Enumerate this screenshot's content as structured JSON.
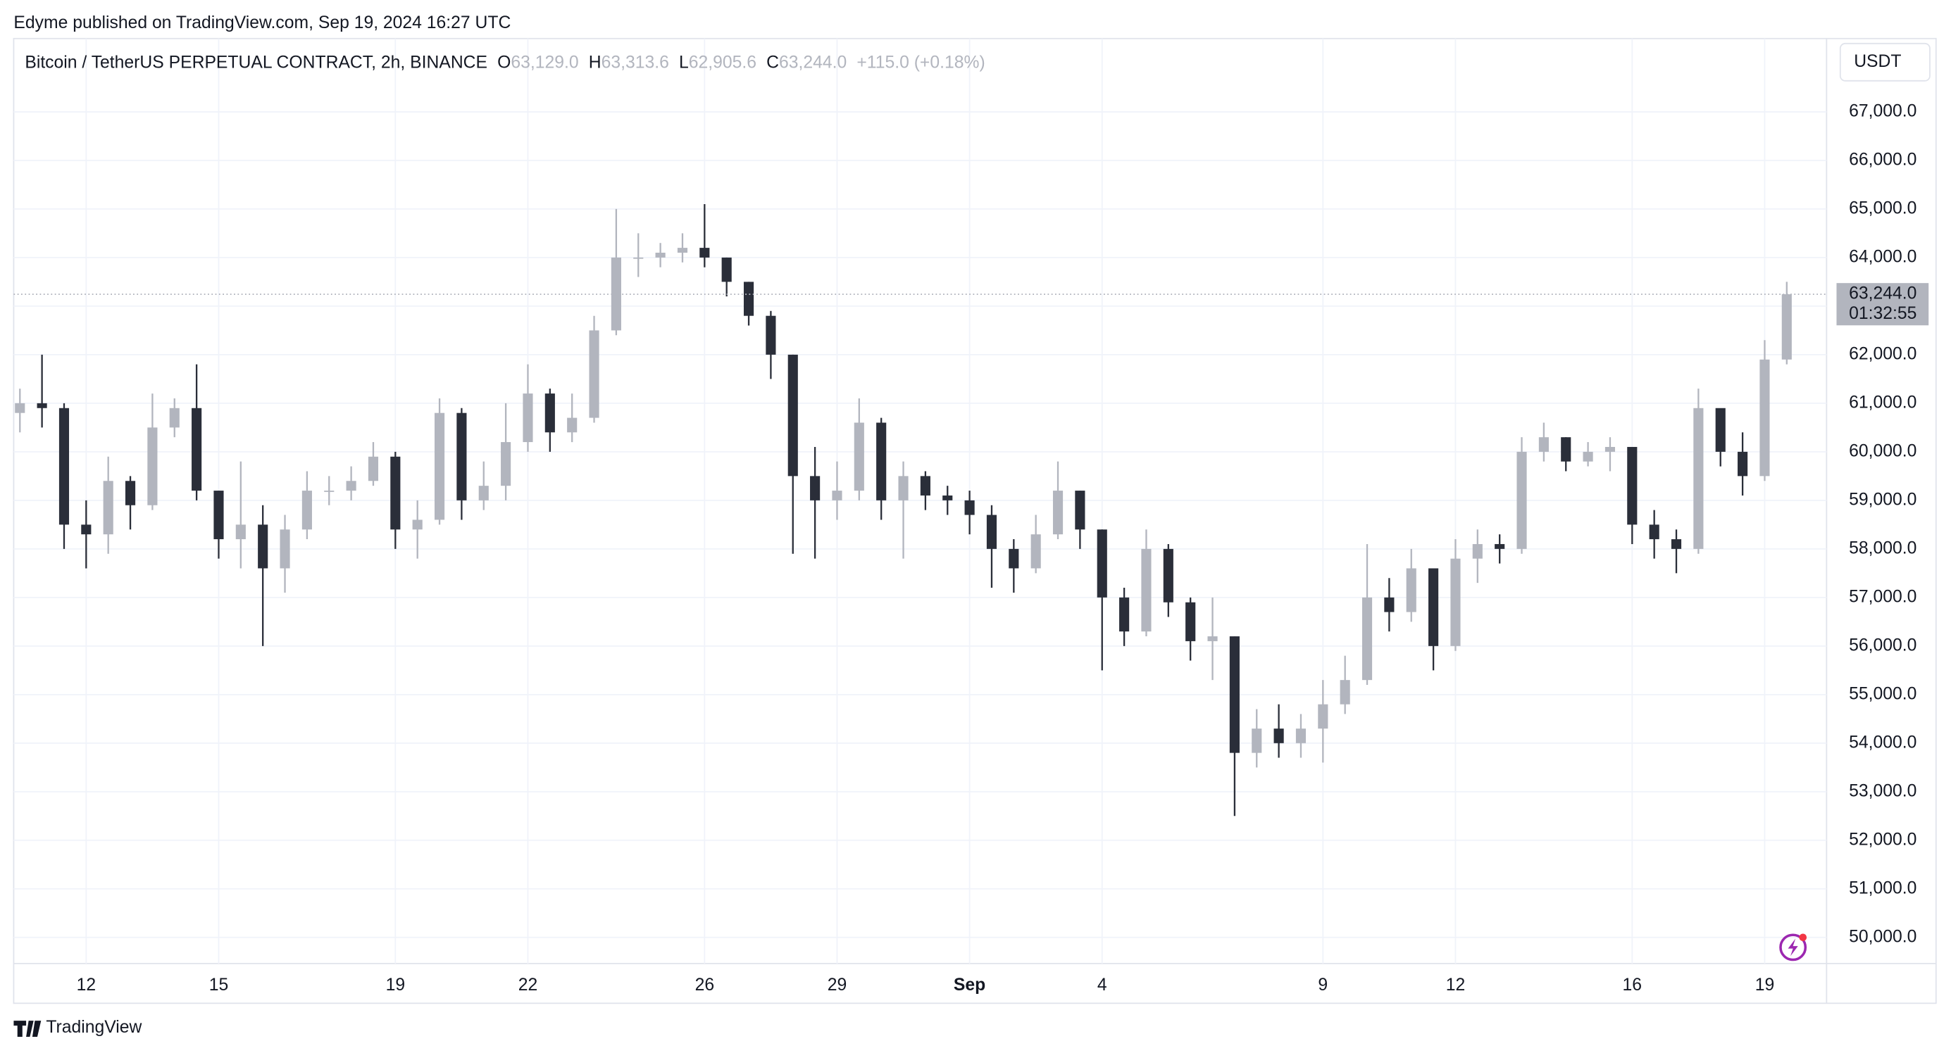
{
  "header": {
    "publisher": "Edyme published on TradingView.com, Sep 19, 2024 16:27 UTC"
  },
  "footer": {
    "brand": "TradingView"
  },
  "chart_data": {
    "type": "candlestick",
    "title": "Bitcoin / TetherUS PERPETUAL CONTRACT, 2h, BINANCE",
    "ohlc_legend": [
      {
        "key": "O",
        "value": 63129,
        "label": "63,129.0"
      },
      {
        "key": "H",
        "value": 63313.6,
        "label": "63,313.6"
      },
      {
        "key": "L",
        "value": 62905.6,
        "label": "62,905.6"
      },
      {
        "key": "C",
        "value": 63244,
        "label": "63,244.0"
      }
    ],
    "change": "+115.0 (+0.18%)",
    "currency": "USDT",
    "last_price": {
      "value": 63244,
      "label": "63,244.0"
    },
    "countdown": "01:32:55",
    "categories": [
      null,
      null,
      null,
      "12",
      null,
      null,
      null,
      null,
      null,
      "15",
      null,
      null,
      null,
      null,
      null,
      null,
      null,
      "19",
      null,
      null,
      null,
      null,
      null,
      "22",
      null,
      null,
      null,
      null,
      null,
      null,
      null,
      "26",
      null,
      null,
      null,
      null,
      null,
      "29",
      null,
      null,
      null,
      null,
      null,
      "Sep",
      null,
      null,
      null,
      null,
      null,
      "4",
      null,
      null,
      null,
      null,
      null,
      null,
      null,
      null,
      null,
      "9",
      null,
      null,
      null,
      null,
      null,
      "12",
      null,
      null,
      null,
      null,
      null,
      null,
      null,
      "16",
      null,
      null,
      null,
      null,
      null,
      "19",
      null
    ],
    "open": [
      60800,
      61000,
      60900,
      58500,
      58300,
      59400,
      58900,
      60500,
      60900,
      59200,
      58200,
      58500,
      57600,
      58400,
      59200,
      59200,
      59400,
      59900,
      58400,
      58600,
      60800,
      59000,
      59300,
      60200,
      61200,
      60400,
      60700,
      62500,
      64000,
      64000,
      64100,
      64200,
      64000,
      63500,
      62800,
      62000,
      59500,
      59000,
      59200,
      60600,
      59000,
      59500,
      59100,
      59000,
      58700,
      58000,
      57600,
      58300,
      59200,
      58400,
      57000,
      56300,
      58000,
      56900,
      56100,
      56200,
      53800,
      54300,
      54000,
      54300,
      54800,
      55300,
      57000,
      56700,
      57600,
      56000,
      57800,
      58100,
      58000,
      60000,
      60300,
      59800,
      60000,
      60100,
      58500,
      58200,
      58000,
      60900,
      60000,
      59500,
      61900
    ],
    "high": [
      61300,
      62000,
      61000,
      59000,
      59900,
      59500,
      61200,
      61100,
      61800,
      59200,
      59800,
      58900,
      58700,
      59600,
      59500,
      59700,
      60200,
      60000,
      59000,
      61100,
      60900,
      59800,
      61000,
      61800,
      61300,
      61200,
      62800,
      65000,
      64500,
      64300,
      64500,
      65100,
      64000,
      63500,
      62900,
      62000,
      60100,
      59800,
      61100,
      60700,
      59800,
      59600,
      59300,
      59200,
      58900,
      58200,
      58700,
      59800,
      59200,
      58400,
      57200,
      58400,
      58100,
      57000,
      57000,
      56200,
      54700,
      54800,
      54600,
      55300,
      55800,
      58100,
      57400,
      58000,
      57600,
      58200,
      58400,
      58300,
      60300,
      60600,
      60300,
      60200,
      60300,
      60100,
      58800,
      58400,
      61300,
      60800,
      60400,
      62300,
      63500
    ],
    "low": [
      60400,
      60500,
      58000,
      57600,
      57900,
      58400,
      58800,
      60300,
      59000,
      57800,
      57600,
      56000,
      57100,
      58200,
      58900,
      59000,
      59300,
      58000,
      57800,
      58500,
      58600,
      58800,
      59000,
      60000,
      60000,
      60200,
      60600,
      62400,
      63600,
      63800,
      63900,
      63800,
      63200,
      62600,
      61500,
      57900,
      57800,
      58600,
      59000,
      58600,
      57800,
      58800,
      58700,
      58300,
      57200,
      57100,
      57500,
      58200,
      58000,
      55500,
      56000,
      56200,
      56600,
      55700,
      55300,
      52500,
      53500,
      53700,
      53700,
      53600,
      54600,
      55200,
      56300,
      56500,
      55500,
      55900,
      57300,
      57700,
      57900,
      59800,
      59600,
      59700,
      59600,
      58100,
      57800,
      57500,
      57900,
      59700,
      59100,
      59400,
      61800
    ],
    "close": [
      61000,
      60900,
      58500,
      58300,
      59400,
      58900,
      60500,
      60900,
      59200,
      58200,
      58500,
      57600,
      58400,
      59200,
      59200,
      59400,
      59900,
      58400,
      58600,
      60800,
      59000,
      59300,
      60200,
      61200,
      60400,
      60700,
      62500,
      64000,
      64000,
      64100,
      64200,
      64000,
      63500,
      62800,
      62000,
      59500,
      59000,
      59200,
      60600,
      59000,
      59500,
      59100,
      59000,
      58700,
      58000,
      57600,
      58300,
      59200,
      58400,
      57000,
      56300,
      58000,
      56900,
      56100,
      56200,
      53800,
      54300,
      54000,
      54300,
      54800,
      55300,
      57000,
      56700,
      57600,
      56000,
      57800,
      58100,
      58000,
      60000,
      60300,
      59800,
      60000,
      60100,
      58500,
      58200,
      58000,
      60900,
      60000,
      59500,
      61900,
      63244
    ],
    "up_color": "#b2b5be",
    "down_color": "#2a2e39",
    "ylim": [
      49463,
      68510
    ],
    "yticks": [
      {
        "value": 50000,
        "label": "50,000.0"
      },
      {
        "value": 51000,
        "label": "51,000.0"
      },
      {
        "value": 52000,
        "label": "52,000.0"
      },
      {
        "value": 53000,
        "label": "53,000.0"
      },
      {
        "value": 54000,
        "label": "54,000.0"
      },
      {
        "value": 55000,
        "label": "55,000.0"
      },
      {
        "value": 56000,
        "label": "56,000.0"
      },
      {
        "value": 57000,
        "label": "57,000.0"
      },
      {
        "value": 58000,
        "label": "58,000.0"
      },
      {
        "value": 59000,
        "label": "59,000.0"
      },
      {
        "value": 60000,
        "label": "60,000.0"
      },
      {
        "value": 61000,
        "label": "61,000.0"
      },
      {
        "value": 62000,
        "label": "62,000.0"
      },
      {
        "value": 63000,
        "label": "63,000.0"
      },
      {
        "value": 64000,
        "label": "64,000.0"
      },
      {
        "value": 65000,
        "label": "65,000.0"
      },
      {
        "value": 66000,
        "label": "66,000.0"
      },
      {
        "value": 67000,
        "label": "67,000.0"
      }
    ],
    "grid": true
  }
}
